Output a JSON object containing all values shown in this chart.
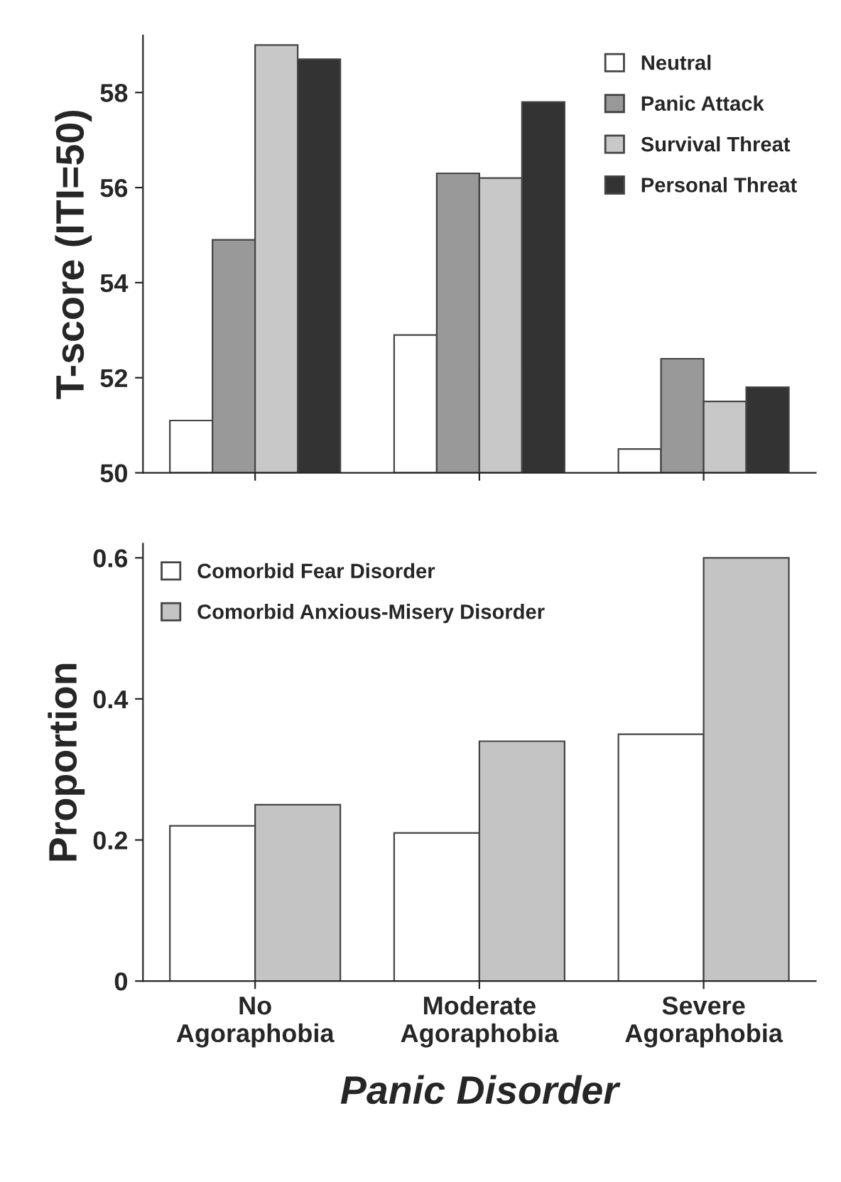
{
  "chart_data": [
    {
      "type": "bar",
      "ylabel": "T-score (ITI=50)",
      "categories": [
        null,
        null,
        null
      ],
      "ylim": [
        50,
        59.2
      ],
      "yticks": [
        50,
        52,
        54,
        56,
        58
      ],
      "tick_labels": "y",
      "legend": "top right",
      "series": [
        {
          "name": "Neutral",
          "color": "#ffffff",
          "values": [
            51.1,
            52.9,
            50.5
          ]
        },
        {
          "name": "Panic Attack",
          "color": "#999999",
          "values": [
            54.9,
            56.3,
            52.4
          ]
        },
        {
          "name": "Survival Threat",
          "color": "#c8c8c8",
          "values": [
            59.0,
            56.2,
            51.5
          ]
        },
        {
          "name": "Personal Threat",
          "color": "#333333",
          "values": [
            58.7,
            57.8,
            51.8
          ]
        }
      ]
    },
    {
      "type": "bar",
      "ylabel": "Proportion",
      "xlabel": "Panic Disorder",
      "categories": [
        "No Agoraphobia",
        "Moderate Agoraphobia",
        "Severe Agoraphobia"
      ],
      "ylim": [
        0,
        0.62
      ],
      "yticks": [
        0,
        0.2,
        0.4,
        0.6
      ],
      "legend": "top left",
      "series": [
        {
          "name": "Comorbid Fear Disorder",
          "color": "#ffffff",
          "values": [
            0.22,
            0.21,
            0.35
          ]
        },
        {
          "name": "Comorbid Anxious-Misery Disorder",
          "color": "#c4c4c4",
          "values": [
            0.25,
            0.34,
            0.6
          ]
        }
      ]
    }
  ]
}
